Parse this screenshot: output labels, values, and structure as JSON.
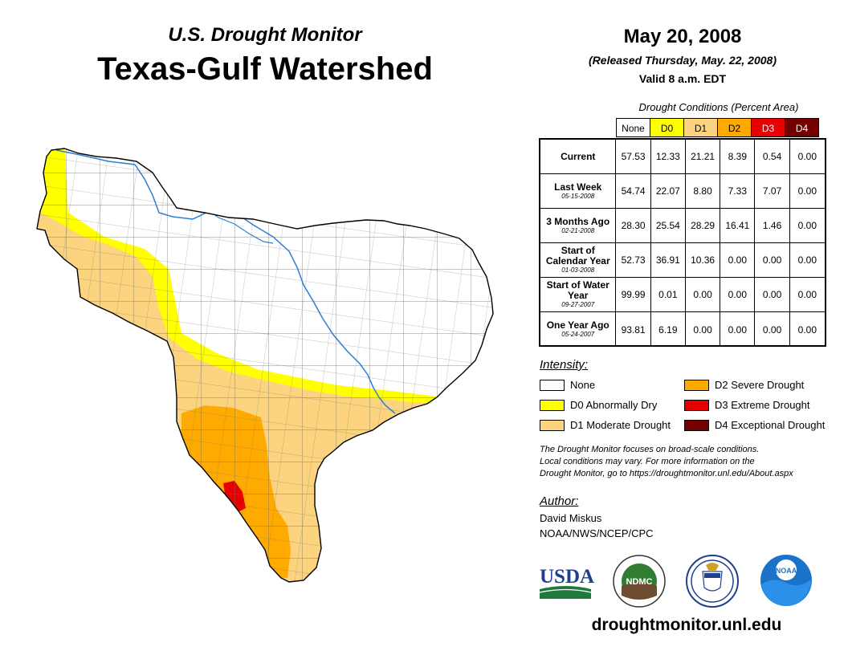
{
  "header": {
    "subtitle": "U.S. Drought Monitor",
    "title": "Texas-Gulf Watershed",
    "date": "May 20, 2008",
    "released": "(Released Thursday, May. 22, 2008)",
    "valid": "Valid 8 a.m. EDT"
  },
  "table": {
    "caption": "Drought Conditions (Percent Area)",
    "columns": [
      {
        "label": "None",
        "color": "#ffffff",
        "text": "#000000"
      },
      {
        "label": "D0",
        "color": "#ffff00",
        "text": "#000000"
      },
      {
        "label": "D1",
        "color": "#fcd37f",
        "text": "#000000"
      },
      {
        "label": "D2",
        "color": "#ffaa00",
        "text": "#000000"
      },
      {
        "label": "D3",
        "color": "#e60000",
        "text": "#ffffff"
      },
      {
        "label": "D4",
        "color": "#730000",
        "text": "#ffffff"
      }
    ],
    "rows": [
      {
        "name": "Current",
        "date": "",
        "values": [
          "57.53",
          "12.33",
          "21.21",
          "8.39",
          "0.54",
          "0.00"
        ]
      },
      {
        "name": "Last Week",
        "date": "05-15-2008",
        "values": [
          "54.74",
          "22.07",
          "8.80",
          "7.33",
          "7.07",
          "0.00"
        ]
      },
      {
        "name": "3 Months Ago",
        "date": "02-21-2008",
        "values": [
          "28.30",
          "25.54",
          "28.29",
          "16.41",
          "1.46",
          "0.00"
        ]
      },
      {
        "name": "Start of Calendar Year",
        "date": "01-03-2008",
        "values": [
          "52.73",
          "36.91",
          "10.36",
          "0.00",
          "0.00",
          "0.00"
        ]
      },
      {
        "name": "Start of Water Year",
        "date": "09-27-2007",
        "values": [
          "99.99",
          "0.01",
          "0.00",
          "0.00",
          "0.00",
          "0.00"
        ]
      },
      {
        "name": "One Year Ago",
        "date": "05-24-2007",
        "values": [
          "93.81",
          "6.19",
          "0.00",
          "0.00",
          "0.00",
          "0.00"
        ]
      }
    ]
  },
  "legend": {
    "title": "Intensity:",
    "items": [
      {
        "label": "None",
        "color": "#ffffff"
      },
      {
        "label": "D0 Abnormally Dry",
        "color": "#ffff00"
      },
      {
        "label": "D1 Moderate Drought",
        "color": "#fcd37f"
      },
      {
        "label": "D2 Severe Drought",
        "color": "#ffaa00"
      },
      {
        "label": "D3 Extreme Drought",
        "color": "#e60000"
      },
      {
        "label": "D4 Exceptional Drought",
        "color": "#730000"
      }
    ]
  },
  "note": {
    "line1": "The Drought Monitor focuses on broad-scale conditions.",
    "line2": "Local conditions may vary. For more information on the",
    "line3": "Drought Monitor, go to https://droughtmonitor.unl.edu/About.aspx"
  },
  "author": {
    "label": "Author:",
    "name": "David Miskus",
    "org": "NOAA/NWS/NCEP/CPC"
  },
  "logos": {
    "usda": "USDA",
    "ndmc": "NDMC",
    "noaa": "NOAA"
  },
  "website": "droughtmonitor.unl.edu"
}
